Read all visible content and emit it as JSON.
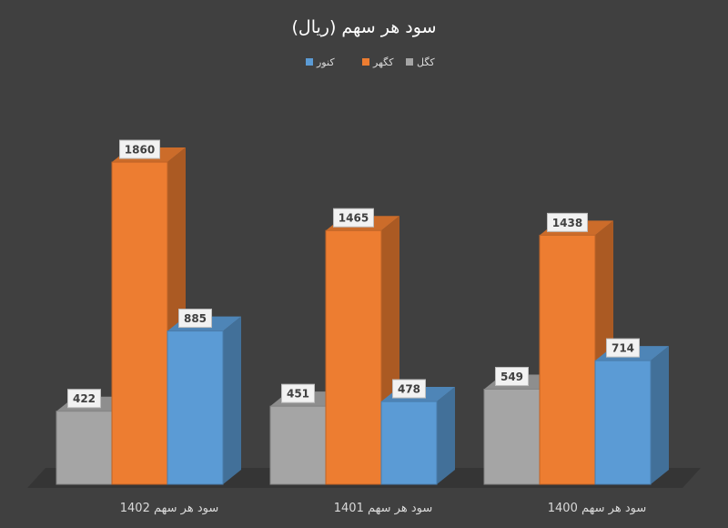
{
  "chart_data": {
    "type": "bar",
    "title": "سود هر سهم (ریال)",
    "categories": [
      "سود هر سهم 1402",
      "سود هر سهم 1401",
      "سود هر سهم 1400"
    ],
    "series": [
      {
        "name": "کگل",
        "values": [
          422,
          451,
          549
        ],
        "color": "#a5a5a5"
      },
      {
        "name": "کگهر",
        "values": [
          1860,
          1465,
          1438
        ],
        "color": "#ed7d31"
      },
      {
        "name": "کنور",
        "values": [
          885,
          478,
          714
        ],
        "color": "#5b9bd5"
      }
    ],
    "legend_order": [
      "کنور",
      "کگهر",
      "کگل"
    ],
    "xlabel": "",
    "ylabel": "",
    "ylim": [
      0,
      2000
    ],
    "grid": false,
    "legend_position": "top-center",
    "style": "3d-clustered-column",
    "background": "#404040"
  }
}
